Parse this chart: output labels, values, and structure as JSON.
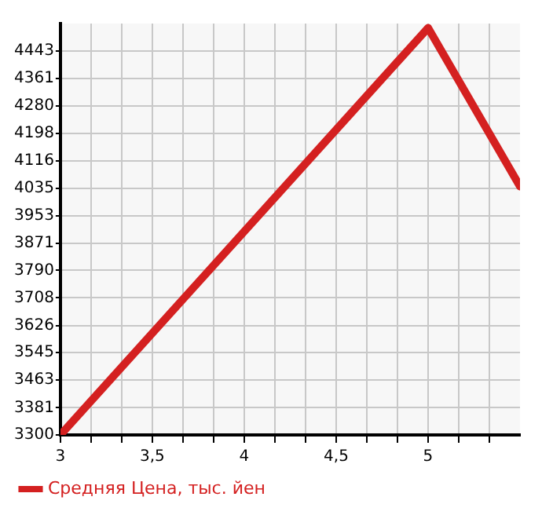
{
  "chart_data": {
    "type": "line",
    "x": [
      3,
      5,
      5.5
    ],
    "series": [
      {
        "name": "Средняя Цена, тыс. йен",
        "color": "#d42020",
        "values": [
          3300,
          4512,
          4040
        ]
      }
    ],
    "xlim": [
      3,
      5.5
    ],
    "xticks": [
      3,
      {
        "value": 3.1667,
        "label": null
      },
      {
        "value": 3.3333,
        "label": null
      },
      {
        "value": 3.5,
        "label": "3,5"
      },
      {
        "value": 3.6667,
        "label": null
      },
      {
        "value": 3.8333,
        "label": null
      },
      4,
      {
        "value": 4.1667,
        "label": null
      },
      {
        "value": 4.3333,
        "label": null
      },
      {
        "value": 4.5,
        "label": "4,5"
      },
      {
        "value": 4.6667,
        "label": null
      },
      {
        "value": 4.8333,
        "label": null
      },
      5,
      {
        "value": 5.1667,
        "label": null
      },
      {
        "value": 5.3333,
        "label": null
      }
    ],
    "ylim": [
      3300,
      4525
    ],
    "yticks": [
      3300,
      3381,
      3463,
      3545,
      3626,
      3708,
      3790,
      3871,
      3953,
      4035,
      4116,
      4198,
      4280,
      4361,
      4443
    ],
    "grid": true,
    "legend": "bottom left",
    "marker": "none",
    "line_style": "solid"
  }
}
